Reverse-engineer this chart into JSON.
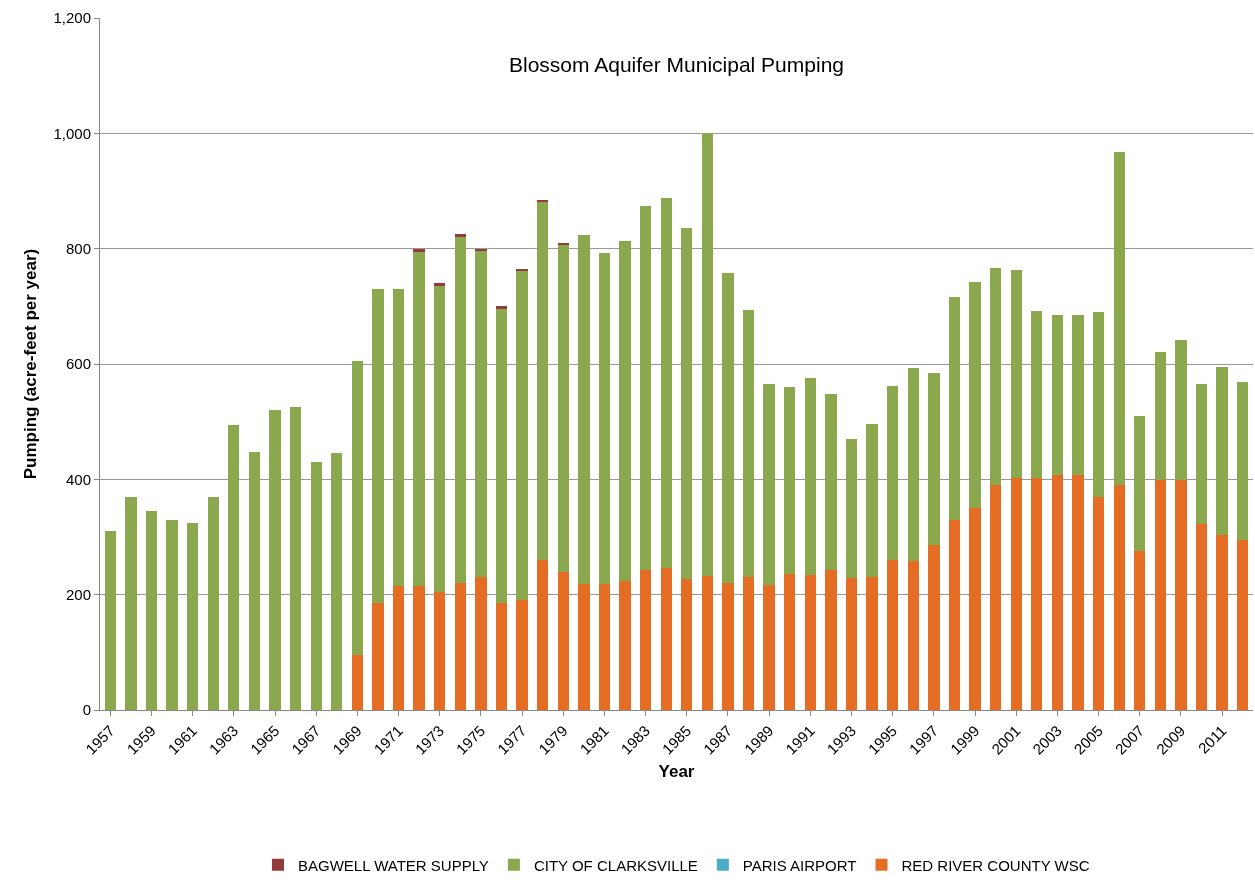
{
  "chart_data": {
    "type": "bar",
    "stacked": true,
    "title": "Blossom Aquifer Municipal Pumping",
    "xlabel": "Year",
    "ylabel": "Pumping (acre-feet per year)",
    "categories": [
      "1957",
      null,
      "1959",
      null,
      "1961",
      null,
      "1963",
      null,
      "1965",
      null,
      "1967",
      null,
      "1969",
      null,
      "1971",
      null,
      "1973",
      null,
      "1975",
      null,
      "1977",
      null,
      "1979",
      null,
      "1981",
      null,
      "1983",
      null,
      "1985",
      null,
      "1987",
      null,
      "1989",
      null,
      "1991",
      null,
      "1993",
      null,
      "1995",
      null,
      "1997",
      null,
      "1999",
      null,
      "2001",
      null,
      "2003",
      null,
      "2005",
      null,
      "2007",
      null,
      "2009",
      null,
      "2011",
      null
    ],
    "series": [
      {
        "name": "RED RIVER COUNTY WSC",
        "color": "#e46c23",
        "values": [
          null,
          null,
          null,
          null,
          null,
          null,
          null,
          null,
          null,
          null,
          null,
          null,
          95,
          185,
          215,
          215,
          205,
          220,
          230,
          185,
          190,
          260,
          240,
          218,
          218,
          223,
          243,
          247,
          228,
          232,
          220,
          231,
          217,
          235,
          234,
          242,
          229,
          231,
          260,
          258,
          287,
          330,
          350,
          390,
          403,
          402,
          407,
          407,
          370,
          390,
          275,
          398,
          398,
          322,
          303,
          295
        ]
      },
      {
        "name": "PARIS AIRPORT",
        "color": "#4bacc6",
        "values": [
          null,
          null,
          null,
          null,
          null,
          null,
          null,
          null,
          null,
          null,
          null,
          null,
          null,
          null,
          null,
          null,
          null,
          null,
          null,
          null,
          null,
          null,
          null,
          null,
          null,
          null,
          null,
          null,
          null,
          null,
          null,
          null,
          null,
          null,
          null,
          null,
          null,
          null,
          null,
          null,
          null,
          null,
          null,
          null,
          null,
          null,
          null,
          null,
          null,
          null,
          null,
          null,
          null,
          null,
          null,
          null
        ]
      },
      {
        "name": "CITY OF CLARKSVILLE",
        "color": "#8ba84f",
        "values": [
          310,
          370,
          345,
          330,
          325,
          370,
          495,
          448,
          520,
          525,
          430,
          445,
          510,
          545,
          515,
          580,
          531,
          601,
          566,
          511,
          571,
          621,
          566,
          605,
          574,
          590,
          631,
          641,
          607,
          768,
          537,
          462,
          348,
          325,
          341,
          306,
          241,
          265,
          302,
          335,
          297,
          387,
          392,
          377,
          360,
          290,
          278,
          278,
          320,
          578,
          235,
          223,
          243,
          243,
          292,
          273
        ]
      },
      {
        "name": "BAGWELL WATER SUPPLY",
        "color": "#963b3b",
        "values": [
          null,
          null,
          null,
          null,
          null,
          null,
          null,
          null,
          null,
          null,
          null,
          null,
          null,
          null,
          null,
          5,
          4,
          4,
          4,
          4,
          4,
          4,
          4,
          null,
          null,
          null,
          null,
          null,
          null,
          null,
          null,
          null,
          null,
          null,
          null,
          null,
          null,
          null,
          null,
          null,
          null,
          null,
          null,
          null,
          null,
          null,
          null,
          null,
          null,
          null,
          null,
          null,
          null,
          null,
          null,
          null
        ]
      }
    ],
    "ylim": [
      0,
      1200
    ],
    "yticks": [
      0,
      200,
      400,
      600,
      800,
      {
        "value": 1000,
        "label": "1,000"
      },
      {
        "value": 1200,
        "label": "1,200"
      }
    ],
    "grid": "y",
    "legend": "bottom"
  }
}
